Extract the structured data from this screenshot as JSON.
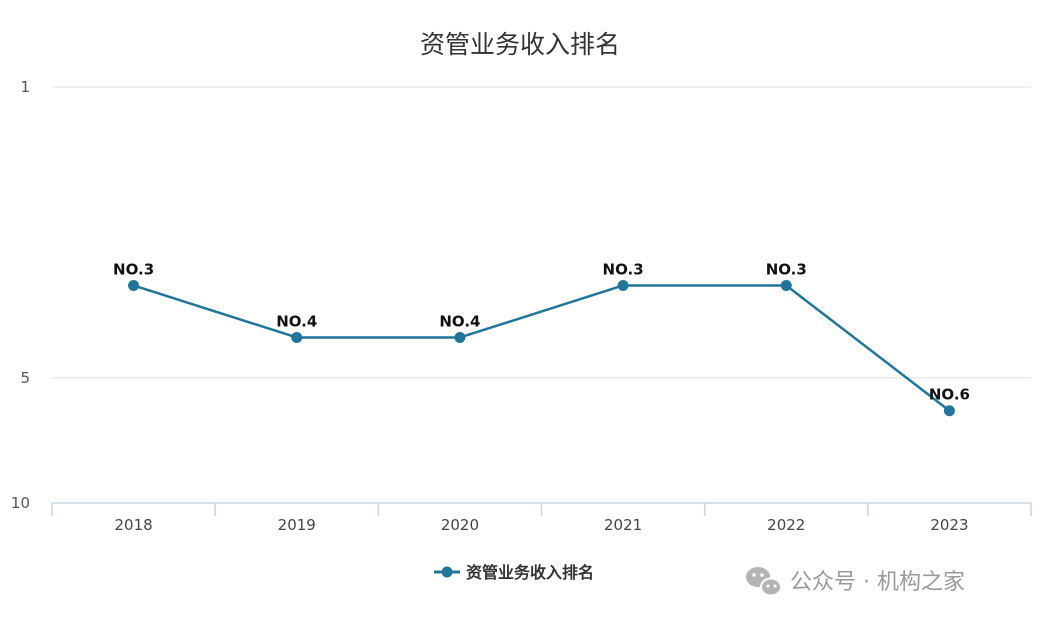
{
  "chart_data": {
    "type": "line",
    "title": "资管业务收入排名",
    "categories": [
      "2018",
      "2019",
      "2020",
      "2021",
      "2022",
      "2023"
    ],
    "series": [
      {
        "name": "资管业务收入排名",
        "values": [
          3,
          4,
          4,
          3,
          3,
          6
        ],
        "labels": [
          "NO.3",
          "NO.4",
          "NO.4",
          "NO.3",
          "NO.3",
          "NO.6"
        ]
      }
    ],
    "y_axis": {
      "reversed": true,
      "log_scale": true,
      "range": [
        1,
        10
      ],
      "ticks": [
        {
          "value": 1,
          "label": "1"
        },
        {
          "value": 5,
          "label": "5"
        },
        {
          "value": 10,
          "label": "10"
        }
      ]
    },
    "grid": true,
    "legend_position": "bottom-center",
    "colors": {
      "series": "#21759b",
      "grid": "#e6e6e6",
      "axis": "#c8d6e6"
    }
  },
  "watermark": {
    "text": "公众号 · 机构之家",
    "icon": "wechat-icon"
  }
}
